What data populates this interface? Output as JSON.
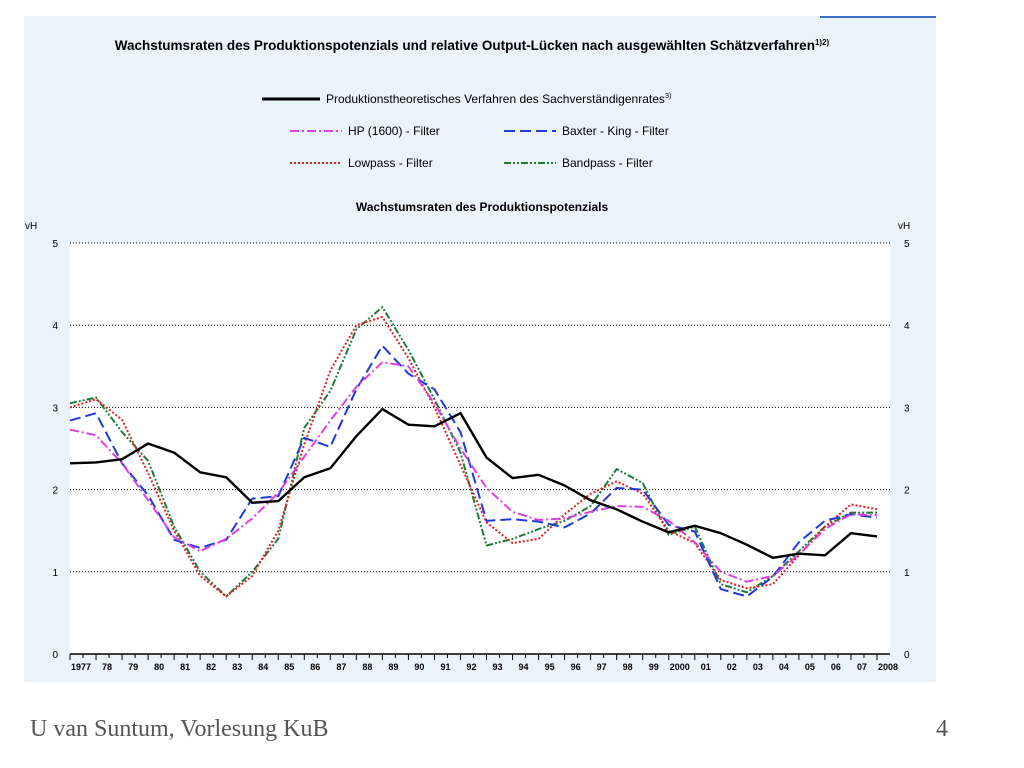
{
  "slide": {
    "footer_left": "U van Suntum, Vorlesung KuB",
    "page_number": "4"
  },
  "figure": {
    "main_title": "Wachstumsraten des Produktionspotenzials und relative Output-Lücken nach ausgewählten Schätzverfahren",
    "main_title_superscript": "1)2)",
    "accent_color": "#3a6fc4"
  },
  "chart_data": {
    "type": "line",
    "title": "Wachstumsraten des Produktionspotenzials",
    "ylabel_left": "vH",
    "ylabel_right": "vH",
    "ylim": [
      0,
      5
    ],
    "yticks": [
      "0",
      "1",
      "2",
      "3",
      "4",
      "5"
    ],
    "grid": "horizontal-dotted",
    "legend_position": "top",
    "x_tick_labels": [
      "1977",
      "78",
      "79",
      "80",
      "81",
      "82",
      "83",
      "84",
      "85",
      "86",
      "87",
      "88",
      "89",
      "90",
      "91",
      "92",
      "93",
      "94",
      "95",
      "96",
      "97",
      "98",
      "99",
      "2000",
      "01",
      "02",
      "03",
      "04",
      "05",
      "06",
      "07",
      "2008"
    ],
    "x_half_years": [
      1977,
      1977.5,
      1978,
      1978.5,
      1979,
      1979.5,
      1980,
      1980.5,
      1981,
      1981.5,
      1982,
      1982.5,
      1983,
      1983.5,
      1984,
      1984.5,
      1985,
      1985.5,
      1986,
      1986.5,
      1987,
      1987.5,
      1988,
      1988.5,
      1989,
      1989.5,
      1990,
      1990.5,
      1991,
      1991.5,
      1992,
      1992.5,
      1993,
      1993.5,
      1994,
      1994.5,
      1995,
      1995.5,
      1996,
      1996.5,
      1997,
      1997.5,
      1998,
      1998.5,
      1999,
      1999.5,
      2000,
      2000.5,
      2001,
      2001.5,
      2002,
      2002.5,
      2003,
      2003.5,
      2004,
      2004.5,
      2005,
      2005.5,
      2006,
      2006.5,
      2007,
      2007.5,
      2008
    ],
    "series": [
      {
        "name": "Produktionstheoretisches Verfahren des Sachverständigenrates",
        "name_superscript": "3)",
        "color": "#000000",
        "dash": "solid",
        "x": [
          1977,
          1978,
          1979,
          1980,
          1981,
          1982,
          1983,
          1984,
          1985,
          1986,
          1987,
          1988,
          1989,
          1990,
          1991,
          1992,
          1993,
          1994,
          1995,
          1996,
          1997,
          1998,
          1999,
          2000,
          2001,
          2002,
          2003,
          2004,
          2005,
          2006,
          2007,
          2008
        ],
        "values": [
          2.32,
          2.33,
          2.37,
          2.56,
          2.45,
          2.21,
          2.15,
          1.84,
          1.86,
          2.15,
          2.26,
          2.65,
          2.98,
          2.79,
          2.77,
          2.93,
          2.39,
          2.14,
          2.18,
          2.05,
          1.87,
          1.76,
          1.61,
          1.48,
          1.56,
          1.47,
          1.33,
          1.17,
          1.22,
          1.2,
          1.47,
          1.43
        ]
      },
      {
        "name": "HP (1600) - Filter",
        "color": "#e040e0",
        "dash": "dash-dot",
        "x": [
          1977,
          1978,
          1979,
          1980,
          1981,
          1982,
          1983,
          1984,
          1985,
          1986,
          1987,
          1988,
          1989,
          1990,
          1991,
          1992,
          1993,
          1994,
          1995,
          1996,
          1997,
          1998,
          1999,
          2000,
          2001,
          2002,
          2003,
          2004,
          2005,
          2006,
          2007,
          2008
        ],
        "values": [
          2.73,
          2.66,
          2.32,
          1.87,
          1.42,
          1.25,
          1.4,
          1.65,
          1.96,
          2.4,
          2.84,
          3.25,
          3.55,
          3.5,
          3.05,
          2.5,
          2.02,
          1.73,
          1.63,
          1.65,
          1.73,
          1.8,
          1.79,
          1.62,
          1.36,
          1.0,
          0.88,
          0.95,
          1.21,
          1.52,
          1.7,
          1.69
        ]
      },
      {
        "name": "Baxter - King - Filter",
        "color": "#1f3ad6",
        "dash": "long-dash",
        "x": [
          1977,
          1978,
          1979,
          1980,
          1981,
          1982,
          1983,
          1984,
          1985,
          1986,
          1987,
          1988,
          1989,
          1990,
          1991,
          1992,
          1993,
          1994,
          1995,
          1996,
          1997,
          1998,
          1999,
          2000,
          2001,
          2002,
          2003,
          2004,
          2005,
          2006,
          2007,
          2008
        ],
        "values": [
          2.84,
          2.93,
          2.32,
          1.93,
          1.39,
          1.29,
          1.39,
          1.89,
          1.92,
          2.63,
          2.52,
          3.22,
          3.75,
          3.41,
          3.22,
          2.7,
          1.62,
          1.64,
          1.61,
          1.54,
          1.71,
          2.02,
          2.0,
          1.57,
          1.49,
          0.79,
          0.7,
          0.94,
          1.36,
          1.62,
          1.7,
          1.66
        ]
      },
      {
        "name": "Lowpass - Filter",
        "color": "#e02020",
        "dash": "dotted",
        "x": [
          1977,
          1978,
          1979,
          1980,
          1981,
          1982,
          1983,
          1984,
          1985,
          1986,
          1987,
          1988,
          1989,
          1990,
          1991,
          1992,
          1993,
          1994,
          1995,
          1996,
          1997,
          1998,
          1999,
          2000,
          2001,
          2002,
          2003,
          2004,
          2005,
          2006,
          2007,
          2008
        ],
        "values": [
          3.0,
          3.1,
          2.85,
          2.2,
          1.5,
          0.95,
          0.7,
          0.95,
          1.5,
          2.55,
          3.45,
          4.0,
          4.1,
          3.6,
          3.0,
          2.3,
          1.6,
          1.35,
          1.4,
          1.7,
          1.95,
          2.1,
          1.95,
          1.5,
          1.35,
          0.9,
          0.8,
          0.85,
          1.2,
          1.55,
          1.82,
          1.76
        ]
      },
      {
        "name": "Bandpass - Filter",
        "color": "#1f7a3a",
        "dash": "dash-dot-dot",
        "x": [
          1977,
          1978,
          1979,
          1980,
          1981,
          1982,
          1983,
          1984,
          1985,
          1986,
          1987,
          1988,
          1989,
          1990,
          1991,
          1992,
          1993,
          1994,
          1995,
          1996,
          1997,
          1998,
          1999,
          2000,
          2001,
          2002,
          2003,
          2004,
          2005,
          2006,
          2007,
          2008
        ],
        "values": [
          3.05,
          3.12,
          2.7,
          2.35,
          1.55,
          1.0,
          0.7,
          1.0,
          1.4,
          2.75,
          3.2,
          3.95,
          4.22,
          3.7,
          3.1,
          2.45,
          1.32,
          1.4,
          1.52,
          1.62,
          1.8,
          2.25,
          2.08,
          1.45,
          1.55,
          0.85,
          0.75,
          0.95,
          1.25,
          1.55,
          1.72,
          1.72
        ]
      }
    ]
  }
}
